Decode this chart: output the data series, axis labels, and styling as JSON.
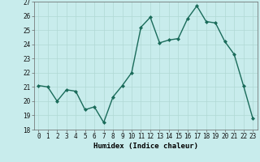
{
  "x": [
    0,
    1,
    2,
    3,
    4,
    5,
    6,
    7,
    8,
    9,
    10,
    11,
    12,
    13,
    14,
    15,
    16,
    17,
    18,
    19,
    20,
    21,
    22,
    23
  ],
  "y": [
    21.1,
    21.0,
    20.0,
    20.8,
    20.7,
    19.4,
    19.6,
    18.5,
    20.3,
    21.1,
    22.0,
    25.2,
    25.9,
    24.1,
    24.3,
    24.4,
    25.8,
    26.7,
    25.6,
    25.5,
    24.2,
    23.3,
    21.1,
    18.8
  ],
  "line_color": "#1a6b5a",
  "marker": "D",
  "marker_size": 2,
  "bg_color": "#c8ecec",
  "grid_color": "#b0d8d5",
  "xlabel": "Humidex (Indice chaleur)",
  "ylim": [
    18,
    27
  ],
  "xlim_min": -0.5,
  "xlim_max": 23.5,
  "yticks": [
    18,
    19,
    20,
    21,
    22,
    23,
    24,
    25,
    26,
    27
  ],
  "xticks": [
    0,
    1,
    2,
    3,
    4,
    5,
    6,
    7,
    8,
    9,
    10,
    11,
    12,
    13,
    14,
    15,
    16,
    17,
    18,
    19,
    20,
    21,
    22,
    23
  ],
  "tick_fontsize": 5.5,
  "label_fontsize": 6.5,
  "linewidth": 1.0
}
